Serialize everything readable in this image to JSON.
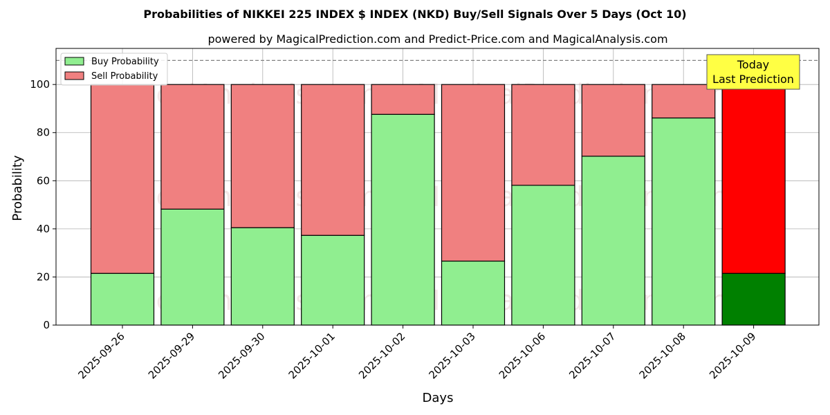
{
  "chart_data": {
    "type": "bar",
    "stacked": true,
    "title": "Probabilities of NIKKEI 225 INDEX $ INDEX (NKD) Buy/Sell Signals Over 5 Days (Oct 10)",
    "subtitle": "powered by MagicalPrediction.com and Predict-Price.com and MagicalAnalysis.com",
    "xlabel": "Days",
    "ylabel": "Probability",
    "ylim": [
      0,
      115
    ],
    "yticks": [
      0,
      20,
      40,
      60,
      80,
      100
    ],
    "grid": true,
    "legend_position": "top-left",
    "reference_line": 110,
    "categories": [
      "2025-09-26",
      "2025-09-29",
      "2025-09-30",
      "2025-10-01",
      "2025-10-02",
      "2025-10-03",
      "2025-10-06",
      "2025-10-07",
      "2025-10-08",
      "2025-10-09"
    ],
    "series": [
      {
        "name": "Buy Probability",
        "color": "#90ee90",
        "values": [
          21.5,
          48.2,
          40.5,
          37.3,
          87.6,
          26.6,
          58.1,
          70.2,
          86.1,
          21.5
        ]
      },
      {
        "name": "Sell Probability",
        "color": "#f08080",
        "values": [
          78.5,
          51.8,
          59.5,
          62.7,
          12.4,
          73.4,
          41.9,
          29.8,
          13.9,
          78.5
        ]
      }
    ],
    "highlight": {
      "index": 9,
      "buy_color": "#008000",
      "sell_color": "#ff0000",
      "annotation": [
        "Today",
        "Last Prediction"
      ],
      "annotation_bg": "#ffff44"
    },
    "watermarks": [
      "MagicalAnalysis.com",
      "MagicalPrediction.com"
    ]
  }
}
